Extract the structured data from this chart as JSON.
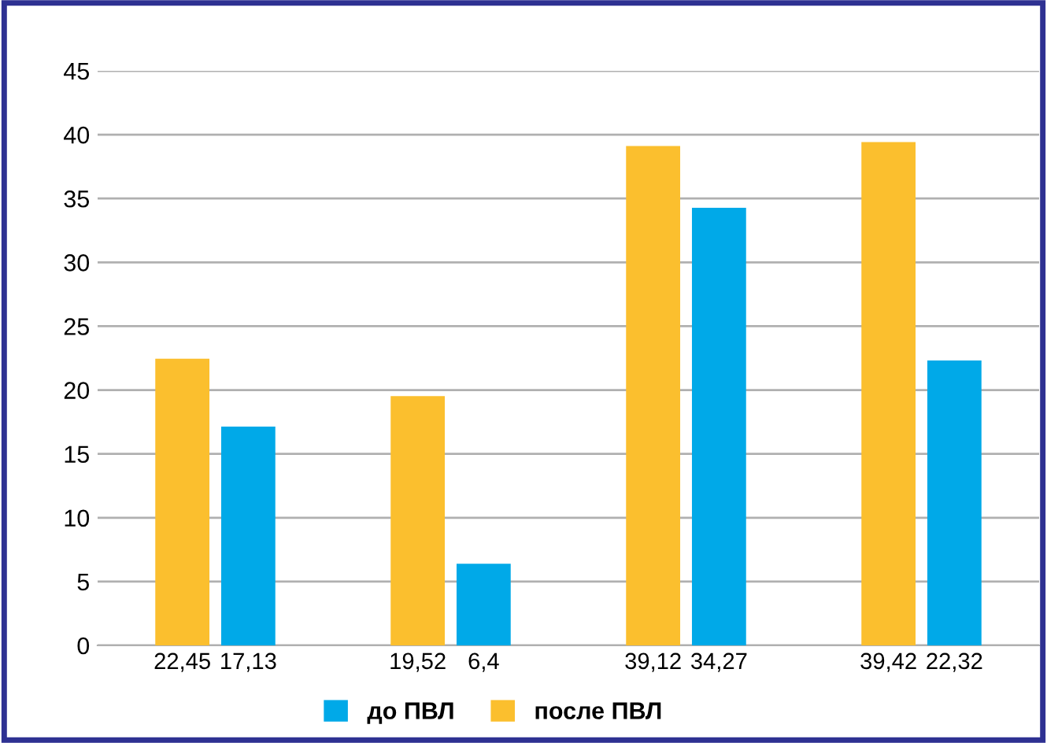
{
  "chart_data": {
    "type": "bar",
    "categories": [
      null,
      null,
      null,
      null
    ],
    "series": [
      {
        "name": "после ПВЛ",
        "color": "#fbbf2e",
        "values": [
          22.45,
          19.52,
          39.12,
          39.42
        ],
        "value_labels": [
          "22,45",
          "19,52",
          "39,12",
          "39,42"
        ]
      },
      {
        "name": "до ПВЛ",
        "color": "#00a9e8",
        "values": [
          17.13,
          6.4,
          34.27,
          22.32
        ],
        "value_labels": [
          "17,13",
          "6,4",
          "34,27",
          "22,32"
        ]
      }
    ],
    "ylim": [
      0,
      45
    ],
    "yticks": [
      0,
      5,
      10,
      15,
      20,
      25,
      30,
      35,
      40,
      45
    ],
    "grid": "y",
    "legend": "bottom"
  }
}
